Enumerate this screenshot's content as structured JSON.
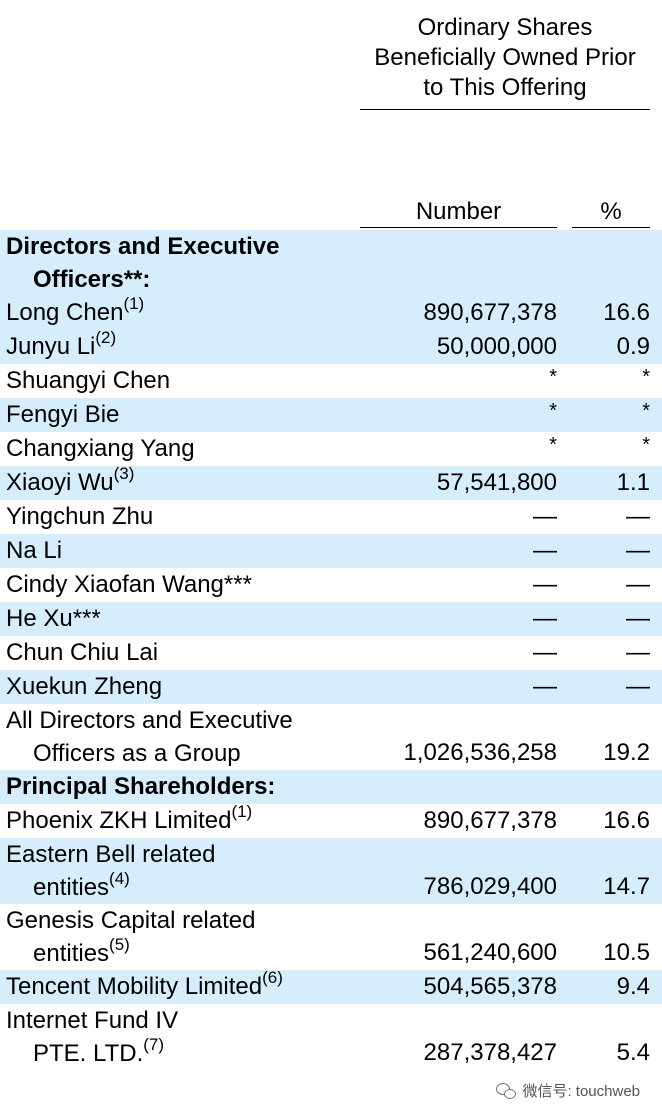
{
  "header": {
    "main_line1": "Ordinary Shares",
    "main_line2": "Beneficially Owned Prior",
    "main_line3": "to This Offering",
    "col_number": "Number",
    "col_percent": "%"
  },
  "rows": [
    {
      "name": "Directors and Executive",
      "name2": "Officers**:",
      "sup": "",
      "number": "",
      "percent": "",
      "bold": true
    },
    {
      "name": "Long Chen",
      "sup": "(1)",
      "number": "890,677,378",
      "percent": "16.6"
    },
    {
      "name": "Junyu Li",
      "sup": "(2)",
      "number": "50,000,000",
      "percent": "0.9"
    },
    {
      "name": "Shuangyi Chen",
      "sup": "",
      "number": "*",
      "percent": "*"
    },
    {
      "name": "Fengyi Bie",
      "sup": "",
      "number": "*",
      "percent": "*"
    },
    {
      "name": "Changxiang Yang",
      "sup": "",
      "number": "*",
      "percent": "*"
    },
    {
      "name": "Xiaoyi Wu",
      "sup": "(3)",
      "number": "57,541,800",
      "percent": "1.1"
    },
    {
      "name": "Yingchun Zhu",
      "sup": "",
      "number": "—",
      "percent": "—"
    },
    {
      "name": "Na Li",
      "sup": "",
      "number": "—",
      "percent": "—"
    },
    {
      "name": "Cindy Xiaofan Wang***",
      "sup": "",
      "number": "—",
      "percent": "—"
    },
    {
      "name": "He Xu***",
      "sup": "",
      "number": "—",
      "percent": "—"
    },
    {
      "name": "Chun Chiu Lai",
      "sup": "",
      "number": "—",
      "percent": "—"
    },
    {
      "name": "Xuekun Zheng",
      "sup": "",
      "number": "—",
      "percent": "—"
    },
    {
      "name": "All Directors and Executive",
      "name2": "Officers as a Group",
      "sup": "",
      "number": "1,026,536,258",
      "percent": "19.2"
    },
    {
      "name": "Principal Shareholders:",
      "sup": "",
      "number": "",
      "percent": "",
      "bold": true
    },
    {
      "name": "Phoenix ZKH Limited",
      "sup": "(1)",
      "number": "890,677,378",
      "percent": "16.6"
    },
    {
      "name": "Eastern Bell related",
      "name2": "entities",
      "sup": "(4)",
      "number": "786,029,400",
      "percent": "14.7"
    },
    {
      "name": "Genesis Capital related",
      "name2": "entities",
      "sup": "(5)",
      "number": "561,240,600",
      "percent": "10.5"
    },
    {
      "name": "Tencent Mobility Limited",
      "sup": "(6)",
      "number": "504,565,378",
      "percent": "9.4"
    },
    {
      "name": "Internet Fund IV",
      "name2": "PTE. LTD.",
      "sup": "(7)",
      "number": "287,378,427",
      "percent": "5.4"
    }
  ],
  "watermark": {
    "text": "微信号: touchweb",
    "icon": "wechat-icon"
  }
}
